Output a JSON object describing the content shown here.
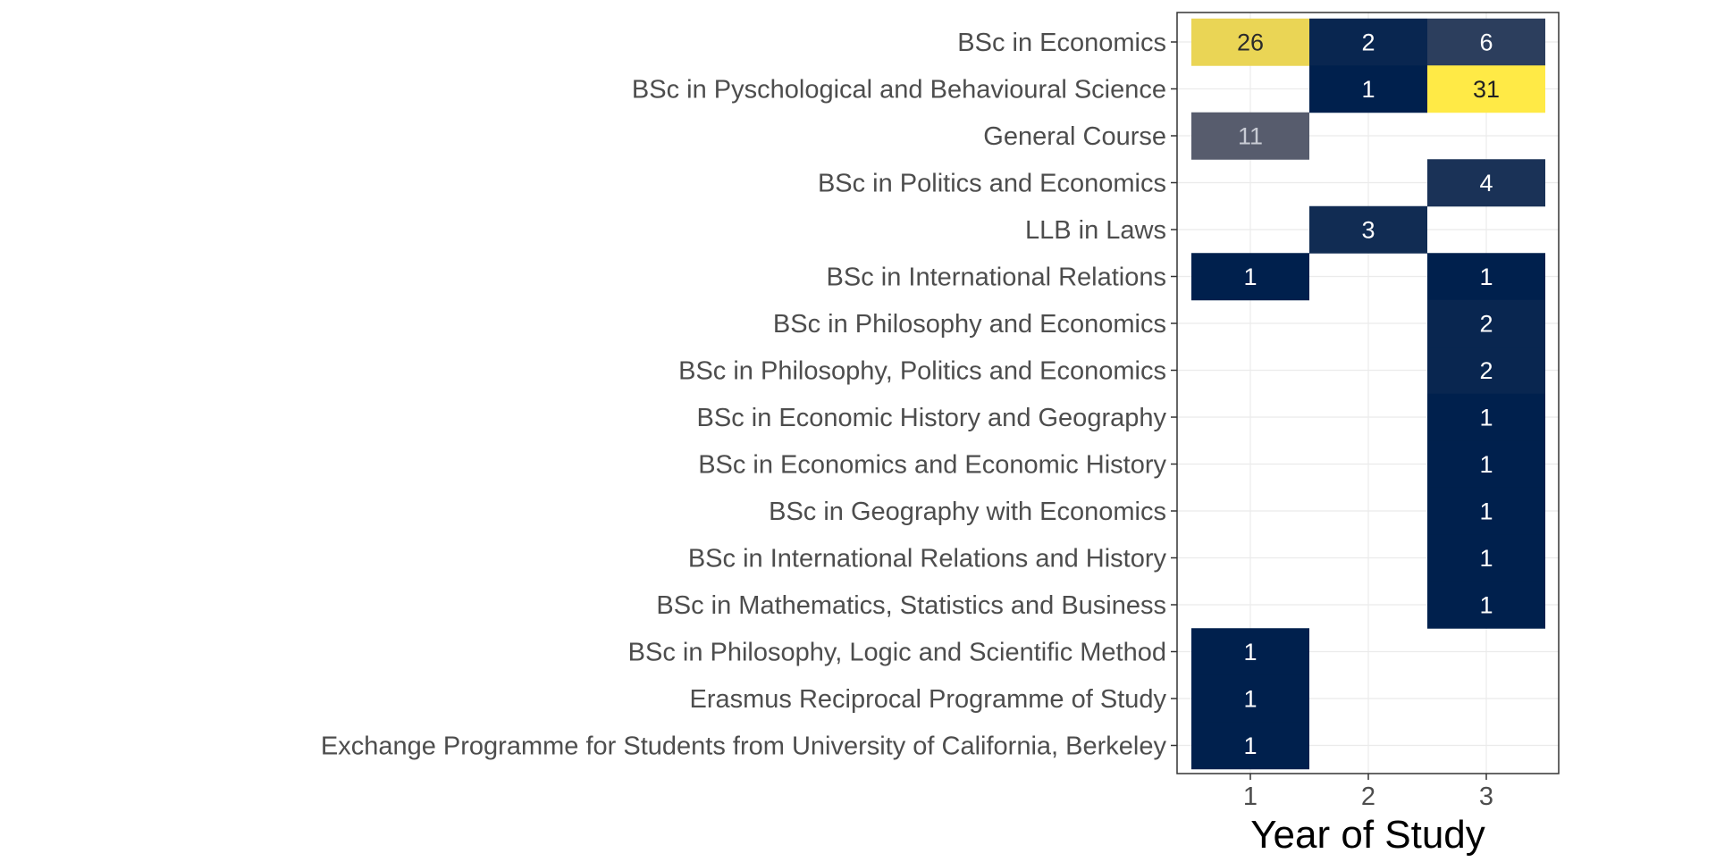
{
  "chart_data": {
    "type": "heatmap",
    "xlabel": "Year of Study",
    "ylabel": "",
    "x_categories": [
      "1",
      "2",
      "3"
    ],
    "y_categories": [
      "BSc in Economics",
      "BSc in Pyschological and Behavioural Science",
      "General Course",
      "BSc in Politics and Economics",
      "LLB in Laws",
      "BSc in International Relations",
      "BSc in Philosophy and Economics",
      "BSc in Philosophy, Politics and Economics",
      "BSc in Economic History and Geography",
      "BSc in Economics and Economic History",
      "BSc in Geography with Economics",
      "BSc in International Relations and History",
      "BSc in Mathematics, Statistics and Business",
      "BSc in Philosophy, Logic and Scientific Method",
      "Erasmus Reciprocal Programme of Study",
      "Exchange Programme for Students from University of California, Berkeley"
    ],
    "cells": [
      {
        "y": "BSc in Economics",
        "x": "1",
        "value": 26
      },
      {
        "y": "BSc in Economics",
        "x": "2",
        "value": 2
      },
      {
        "y": "BSc in Economics",
        "x": "3",
        "value": 6
      },
      {
        "y": "BSc in Pyschological and Behavioural Science",
        "x": "2",
        "value": 1
      },
      {
        "y": "BSc in Pyschological and Behavioural Science",
        "x": "3",
        "value": 31
      },
      {
        "y": "General Course",
        "x": "1",
        "value": 11
      },
      {
        "y": "BSc in Politics and Economics",
        "x": "3",
        "value": 4
      },
      {
        "y": "LLB in Laws",
        "x": "2",
        "value": 3
      },
      {
        "y": "BSc in International Relations",
        "x": "1",
        "value": 1
      },
      {
        "y": "BSc in International Relations",
        "x": "3",
        "value": 1
      },
      {
        "y": "BSc in Philosophy and Economics",
        "x": "3",
        "value": 2
      },
      {
        "y": "BSc in Philosophy, Politics and Economics",
        "x": "3",
        "value": 2
      },
      {
        "y": "BSc in Economic History and Geography",
        "x": "3",
        "value": 1
      },
      {
        "y": "BSc in Economics and Economic History",
        "x": "3",
        "value": 1
      },
      {
        "y": "BSc in Geography with Economics",
        "x": "3",
        "value": 1
      },
      {
        "y": "BSc in International Relations and History",
        "x": "3",
        "value": 1
      },
      {
        "y": "BSc in Mathematics, Statistics and Business",
        "x": "3",
        "value": 1
      },
      {
        "y": "BSc in Philosophy, Logic and Scientific Method",
        "x": "1",
        "value": 1
      },
      {
        "y": "Erasmus Reciprocal Programme of Study",
        "x": "1",
        "value": 1
      },
      {
        "y": "Exchange Programme for Students from University of California, Berkeley",
        "x": "1",
        "value": 1
      }
    ],
    "value_range": [
      1,
      31
    ],
    "colormap": "cividis",
    "colormap_stops": [
      "#00204d",
      "#575c6d",
      "#d4c063",
      "#ffea46"
    ],
    "grid": true,
    "legend": "none"
  }
}
